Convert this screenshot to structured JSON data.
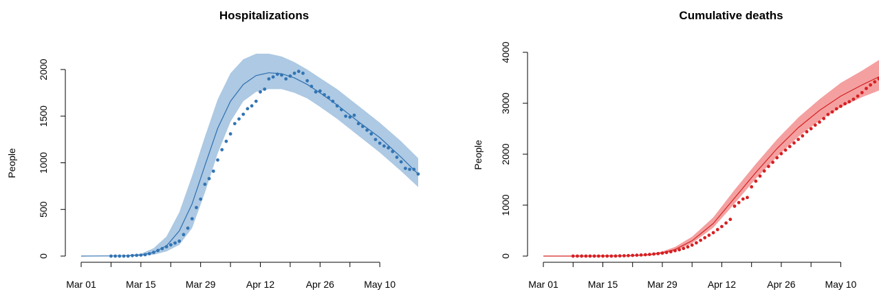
{
  "colors": {
    "hosp_line": "#2e6fb0",
    "hosp_band": "#adc9e3",
    "hosp_points": "#3274b3",
    "deaths_line": "#d62023",
    "deaths_band": "#f4a0a0",
    "deaths_points": "#d62023"
  },
  "chart_data": [
    {
      "type": "line",
      "title": "Hospitalizations",
      "ylabel": "People",
      "xlabel": "",
      "x_ticks": [
        "Mar 01",
        "Mar 15",
        "Mar 29",
        "Apr 12",
        "Apr 26",
        "May 10"
      ],
      "x_tick_days": [
        0,
        14,
        28,
        42,
        56,
        70
      ],
      "y_ticks": [
        "0",
        "500",
        "1000",
        "1500",
        "2000"
      ],
      "y_tick_values": [
        0,
        500,
        1000,
        1500,
        2000
      ],
      "xlim": [
        0,
        79
      ],
      "ylim": [
        0,
        2000
      ],
      "grid": false,
      "model": {
        "day": [
          0,
          10,
          14,
          17,
          20,
          23,
          26,
          29,
          32,
          35,
          38,
          41,
          44,
          47,
          50,
          53,
          56,
          60,
          65,
          70,
          75,
          79
        ],
        "mean": [
          0,
          2,
          10,
          40,
          110,
          270,
          560,
          970,
          1370,
          1660,
          1840,
          1935,
          1965,
          1955,
          1910,
          1840,
          1750,
          1620,
          1440,
          1270,
          1060,
          880
        ],
        "lower": [
          0,
          0,
          3,
          15,
          50,
          120,
          300,
          680,
          1100,
          1440,
          1660,
          1760,
          1790,
          1790,
          1750,
          1690,
          1600,
          1470,
          1290,
          1110,
          910,
          740
        ],
        "upper": [
          0,
          6,
          25,
          85,
          210,
          470,
          860,
          1280,
          1680,
          1960,
          2110,
          2170,
          2170,
          2140,
          2080,
          2000,
          1910,
          1790,
          1610,
          1430,
          1230,
          1050
        ]
      },
      "observed": {
        "day": [
          7,
          8,
          9,
          10,
          11,
          12,
          13,
          14,
          15,
          16,
          17,
          18,
          19,
          20,
          21,
          22,
          23,
          24,
          25,
          26,
          27,
          28,
          29,
          30,
          31,
          32,
          33,
          34,
          35,
          36,
          37,
          38,
          39,
          40,
          41,
          42,
          43,
          44,
          45,
          46,
          47,
          48,
          49,
          50,
          51,
          52,
          53,
          54,
          55,
          56,
          57,
          58,
          59,
          60,
          61,
          62,
          63,
          64,
          65,
          66,
          67,
          68,
          69,
          70,
          71,
          72,
          73,
          74,
          75,
          76,
          77,
          78,
          79
        ],
        "value": [
          0,
          0,
          0,
          0,
          0,
          5,
          8,
          10,
          15,
          25,
          40,
          60,
          80,
          100,
          120,
          140,
          160,
          230,
          300,
          400,
          520,
          610,
          770,
          830,
          910,
          1030,
          1140,
          1230,
          1310,
          1420,
          1470,
          1520,
          1580,
          1610,
          1660,
          1760,
          1790,
          1900,
          1920,
          1950,
          1940,
          1900,
          1930,
          1960,
          1980,
          1960,
          1880,
          1820,
          1760,
          1770,
          1730,
          1700,
          1660,
          1610,
          1570,
          1500,
          1490,
          1510,
          1420,
          1390,
          1350,
          1310,
          1250,
          1210,
          1180,
          1160,
          1120,
          1060,
          1010,
          940,
          930,
          930,
          880
        ]
      }
    },
    {
      "type": "line",
      "title": "Cumulative deaths",
      "ylabel": "People",
      "xlabel": "",
      "x_ticks": [
        "Mar 01",
        "Mar 15",
        "Mar 29",
        "Apr 12",
        "Apr 26",
        "May 10"
      ],
      "x_tick_days": [
        0,
        14,
        28,
        42,
        56,
        70
      ],
      "y_ticks": [
        "0",
        "1000",
        "2000",
        "3000",
        "4000"
      ],
      "y_tick_values": [
        0,
        1000,
        2000,
        3000,
        4000
      ],
      "xlim": [
        0,
        79
      ],
      "ylim": [
        0,
        4000
      ],
      "grid": false,
      "model": {
        "day": [
          0,
          10,
          20,
          25,
          28,
          31,
          35,
          40,
          45,
          50,
          55,
          60,
          65,
          70,
          75,
          79
        ],
        "mean": [
          0,
          0,
          5,
          25,
          65,
          130,
          300,
          640,
          1140,
          1640,
          2110,
          2520,
          2860,
          3140,
          3360,
          3520
        ],
        "lower": [
          0,
          0,
          2,
          15,
          45,
          100,
          250,
          560,
          1030,
          1520,
          1950,
          2340,
          2660,
          2920,
          3120,
          3250
        ],
        "upper": [
          0,
          0,
          10,
          40,
          90,
          180,
          380,
          760,
          1300,
          1810,
          2290,
          2720,
          3080,
          3400,
          3640,
          3850
        ]
      },
      "observed": {
        "day": [
          7,
          8,
          9,
          10,
          11,
          12,
          13,
          14,
          15,
          16,
          17,
          18,
          19,
          20,
          21,
          22,
          23,
          24,
          25,
          26,
          27,
          28,
          29,
          30,
          31,
          32,
          33,
          34,
          35,
          36,
          37,
          38,
          39,
          40,
          41,
          42,
          43,
          44,
          45,
          46,
          47,
          48,
          49,
          50,
          51,
          52,
          53,
          54,
          55,
          56,
          57,
          58,
          59,
          60,
          61,
          62,
          63,
          64,
          65,
          66,
          67,
          68,
          69,
          70,
          71,
          72,
          73,
          74,
          75,
          76,
          77,
          78,
          79
        ],
        "value": [
          0,
          0,
          0,
          0,
          0,
          0,
          0,
          0,
          0,
          0,
          2,
          4,
          7,
          10,
          14,
          18,
          22,
          27,
          33,
          40,
          48,
          58,
          70,
          85,
          105,
          125,
          150,
          180,
          215,
          260,
          310,
          360,
          410,
          460,
          520,
          580,
          650,
          720,
          980,
          1050,
          1120,
          1150,
          1360,
          1470,
          1570,
          1670,
          1760,
          1840,
          1930,
          2010,
          2080,
          2150,
          2220,
          2290,
          2360,
          2440,
          2500,
          2570,
          2630,
          2700,
          2780,
          2830,
          2890,
          2940,
          2990,
          3030,
          3080,
          3140,
          3210,
          3290,
          3360,
          3420,
          3480
        ]
      }
    }
  ]
}
